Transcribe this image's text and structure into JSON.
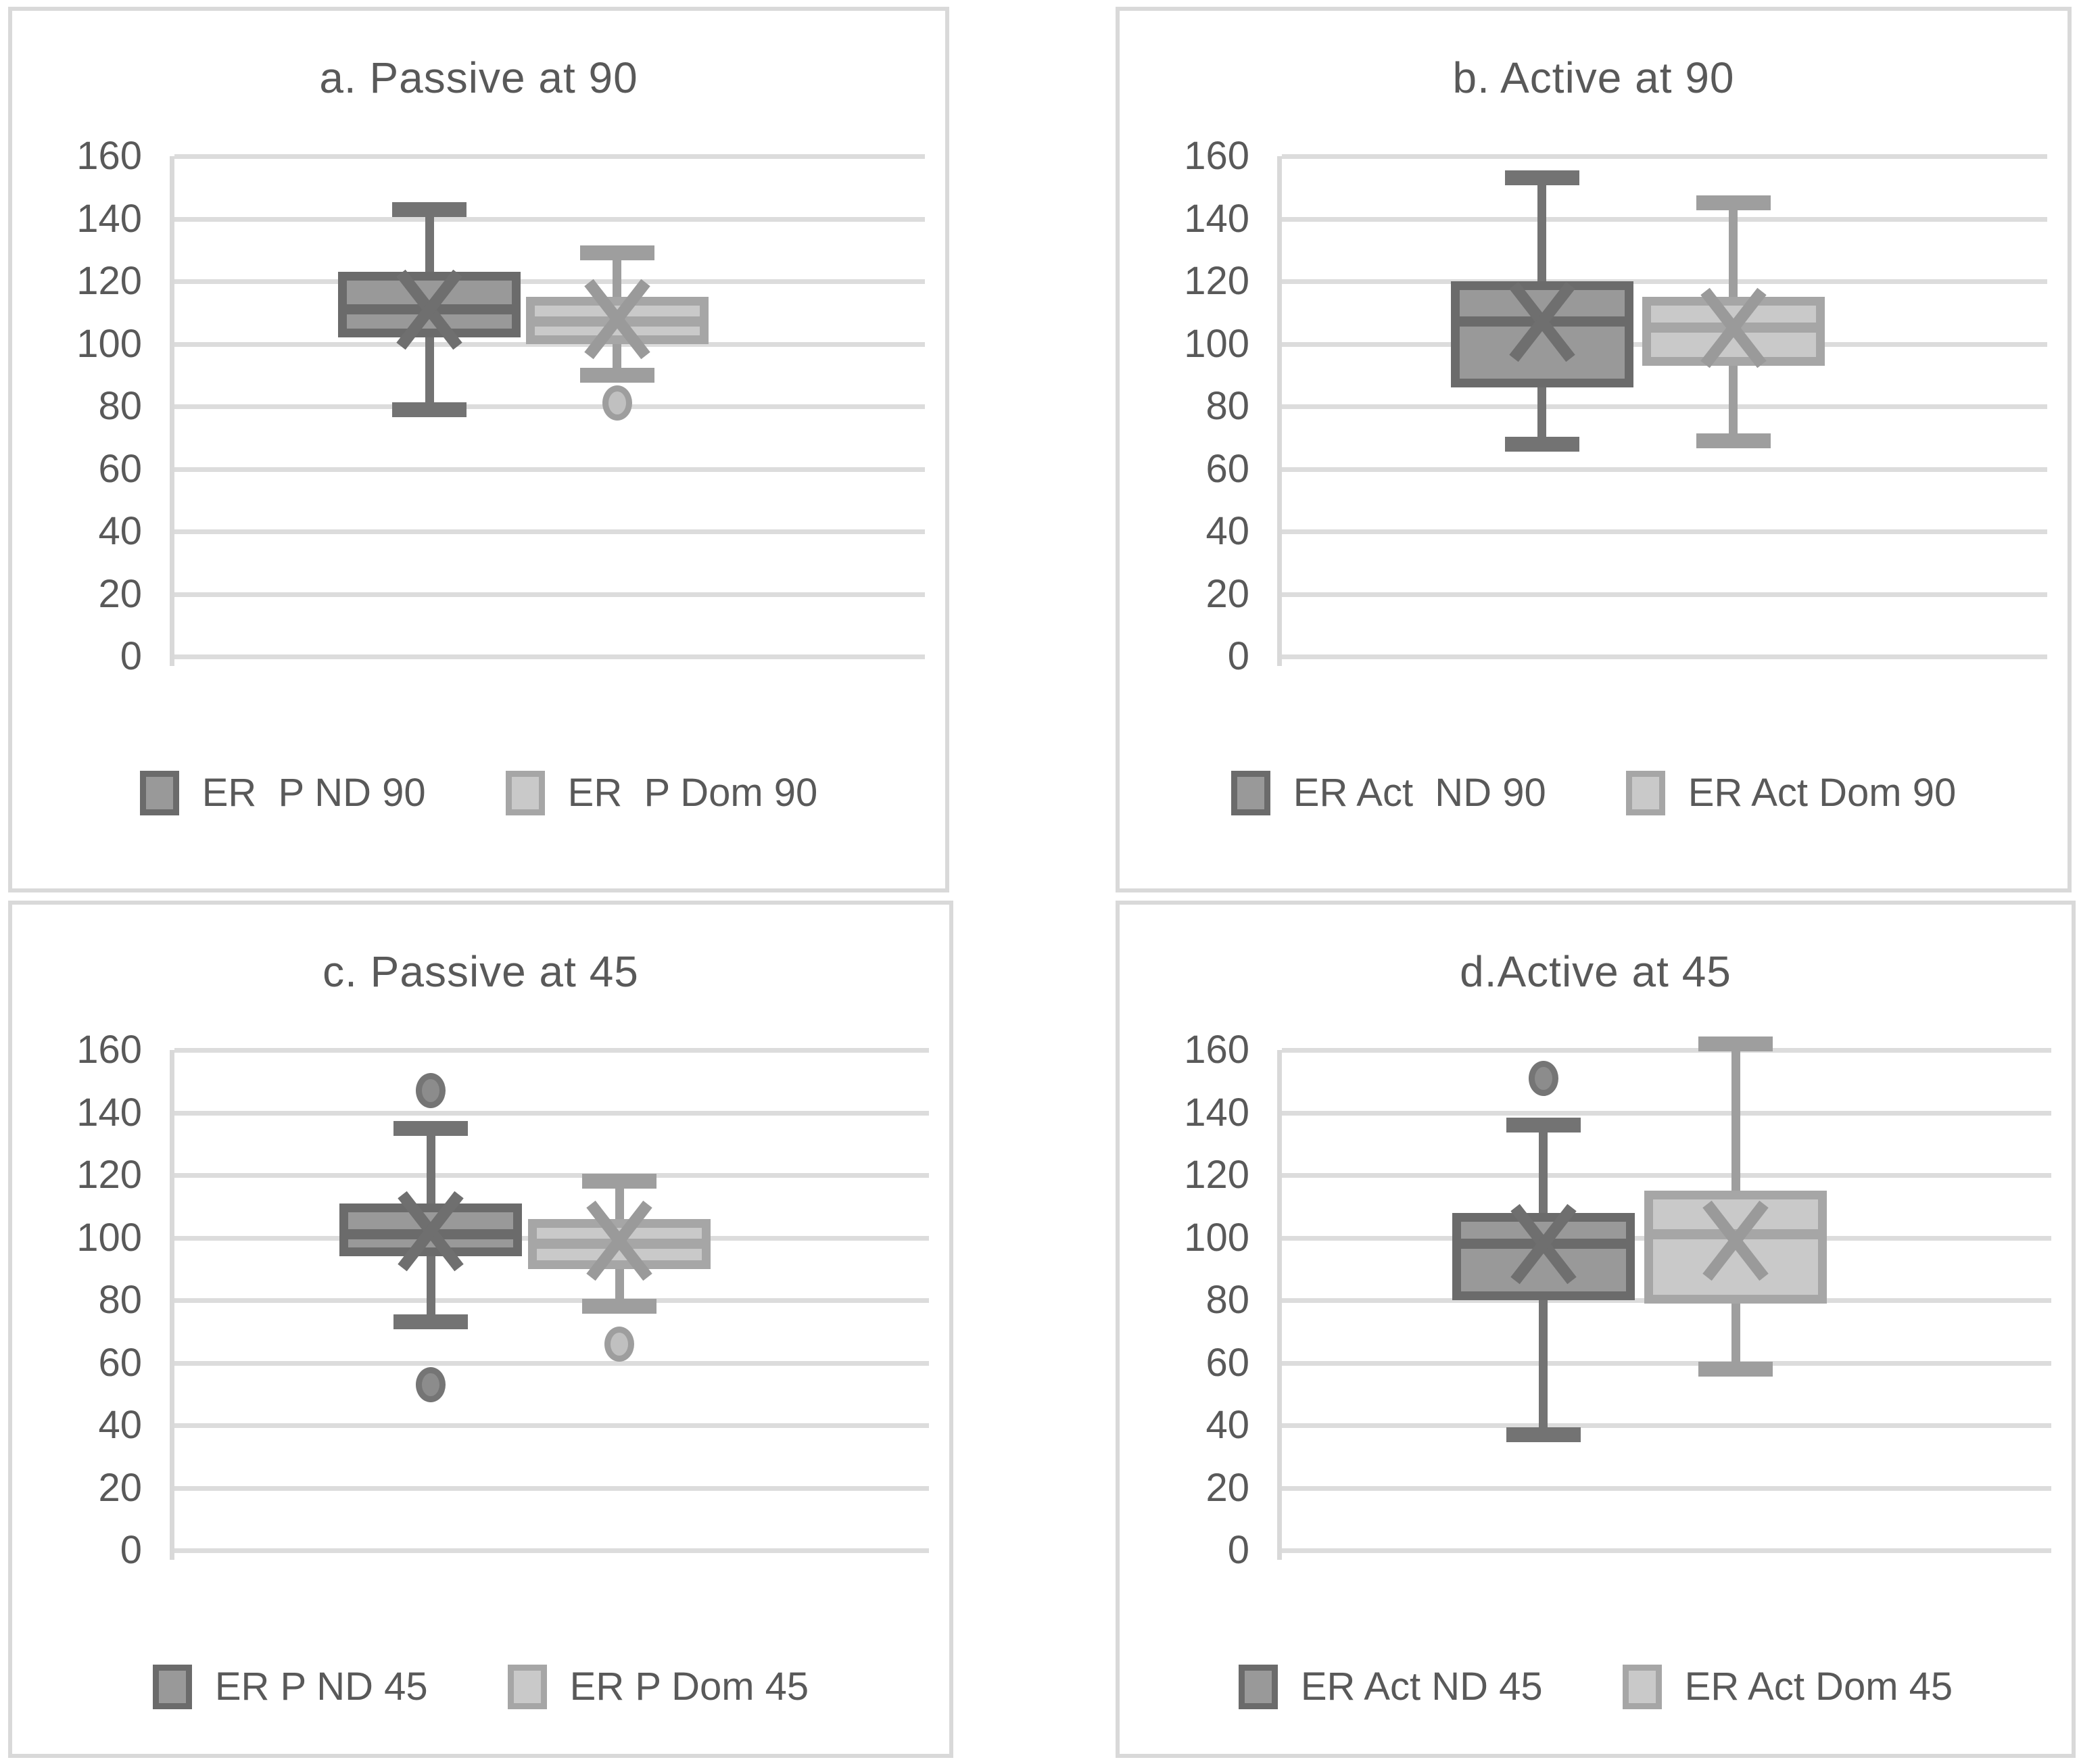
{
  "chart_data": {
    "type": "boxplot",
    "layout": "2x2-grid",
    "y_axis": {
      "min": 0,
      "max": 160,
      "step": 20,
      "tick_labels": [
        "160",
        "140",
        "120",
        "100",
        "80",
        "60",
        "40",
        "20",
        "0"
      ],
      "grid": true
    },
    "colors": {
      "background": "#ffffff",
      "panel_border": "#d9d9d9",
      "grid": "#dcdcdc",
      "axis": "#d9d9d9",
      "text": "#595959",
      "series": [
        {
          "role": "non-dominant",
          "fill": "#999999",
          "border": "#6b6b6b",
          "whisker": "#737373",
          "mean": "#6f6f6f",
          "outlier_fill": "#8c8c8c",
          "outlier_ring": "#757575"
        },
        {
          "role": "dominant",
          "fill": "#c9c9c9",
          "border": "#a6a6a6",
          "whisker": "#9e9e9e",
          "mean": "#9a9a9a",
          "outlier_fill": "#c0c0c0",
          "outlier_ring": "#9e9e9e"
        }
      ]
    },
    "panels": [
      {
        "id": "a",
        "title": "a. Passive at 90",
        "series": [
          {
            "label": "ER  P ND 90",
            "whisker_low": 79,
            "q1": 102,
            "median": 111,
            "mean": 111,
            "q3": 123,
            "whisker_high": 143,
            "outliers": []
          },
          {
            "label": "ER  P Dom 90",
            "whisker_low": 90,
            "q1": 100,
            "median": 107,
            "mean": 108,
            "q3": 115,
            "whisker_high": 129,
            "outliers": [
              81
            ]
          }
        ]
      },
      {
        "id": "b",
        "title": "b. Active at 90",
        "series": [
          {
            "label": "ER Act  ND 90",
            "whisker_low": 68,
            "q1": 86,
            "median": 107,
            "mean": 107,
            "q3": 120,
            "whisker_high": 153,
            "outliers": []
          },
          {
            "label": "ER Act Dom 90",
            "whisker_low": 69,
            "q1": 93,
            "median": 105,
            "mean": 105,
            "q3": 115,
            "whisker_high": 145,
            "outliers": []
          }
        ]
      },
      {
        "id": "c",
        "title": "c. Passive at 45",
        "series": [
          {
            "label": "ER P ND 45",
            "whisker_low": 73,
            "q1": 94,
            "median": 101,
            "mean": 102,
            "q3": 111,
            "whisker_high": 135,
            "outliers": [
              147,
              53
            ]
          },
          {
            "label": "ER P Dom 45",
            "whisker_low": 78,
            "q1": 90,
            "median": 98,
            "mean": 99,
            "q3": 106,
            "whisker_high": 118,
            "outliers": [
              66
            ]
          }
        ]
      },
      {
        "id": "d",
        "title": "d.Active at 45",
        "series": [
          {
            "label": "ER Act ND 45",
            "whisker_low": 37,
            "q1": 80,
            "median": 98,
            "mean": 98,
            "q3": 108,
            "whisker_high": 136,
            "outliers": [
              151
            ]
          },
          {
            "label": "ER Act Dom 45",
            "whisker_low": 58,
            "q1": 79,
            "median": 101,
            "mean": 99,
            "q3": 115,
            "whisker_high": 162,
            "outliers": []
          }
        ]
      }
    ]
  }
}
